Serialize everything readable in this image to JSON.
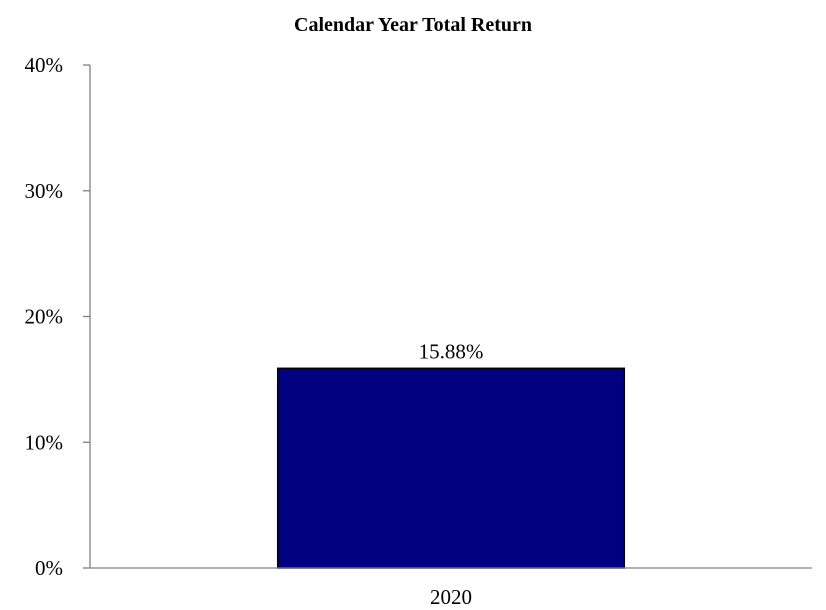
{
  "chart_data": {
    "type": "bar",
    "title": "Calendar Year Total Return",
    "categories": [
      "2020"
    ],
    "values": [
      15.88
    ],
    "data_labels": [
      "15.88%"
    ],
    "ylim": [
      0,
      40
    ],
    "y_ticks": [
      {
        "value": 0,
        "label": "0%"
      },
      {
        "value": 10,
        "label": "10%"
      },
      {
        "value": 20,
        "label": "20%"
      },
      {
        "value": 30,
        "label": "30%"
      },
      {
        "value": 40,
        "label": "40%"
      }
    ],
    "xlabel": "",
    "ylabel": "",
    "grid": false,
    "bar_color": "#000080",
    "axis_color": "#808080"
  }
}
